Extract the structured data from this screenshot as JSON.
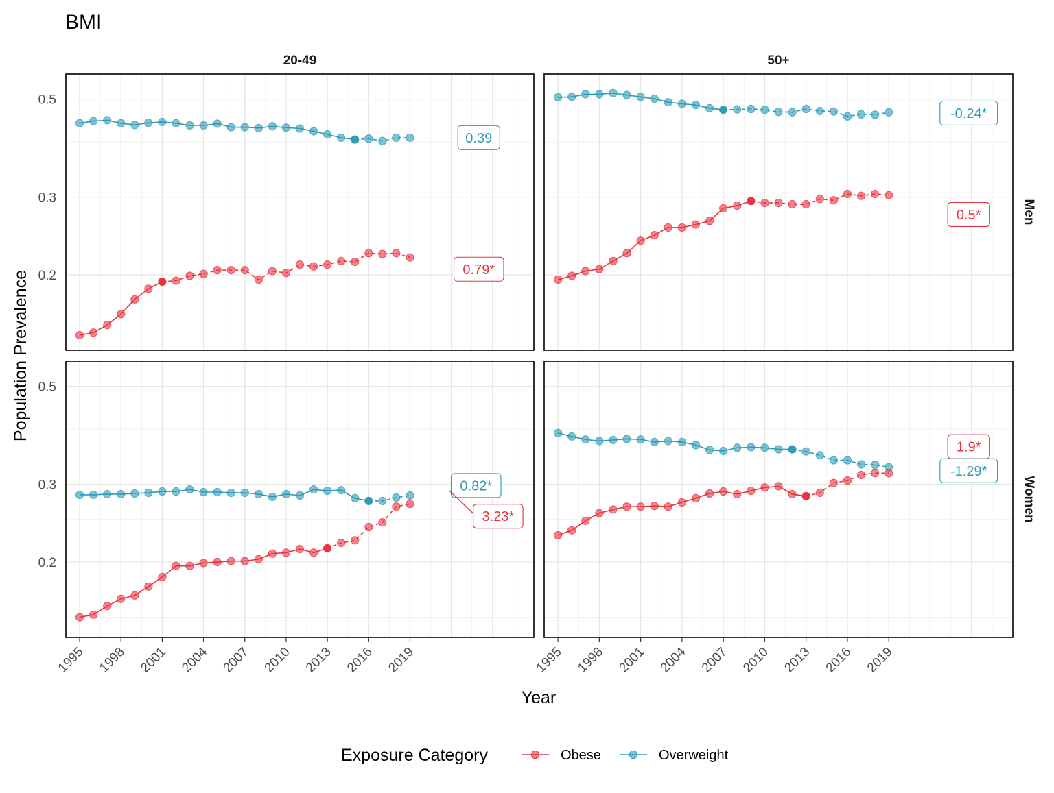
{
  "colors": {
    "Obese": "#e8323f",
    "Overweight": "#2d9bb5"
  },
  "chart_data": {
    "type": "line",
    "title": "BMI",
    "xlabel": "Year",
    "ylabel": "Population Prevalence",
    "y_scale": "log",
    "ylim": [
      0.135,
      0.57
    ],
    "xlim": [
      1994,
      2028
    ],
    "x_ticks": [
      "1995",
      "1998",
      "2001",
      "2004",
      "2007",
      "2010",
      "2013",
      "2016",
      "2019"
    ],
    "y_ticks": [
      "0.2",
      "0.3",
      "0.5"
    ],
    "col_labels": [
      "20-49",
      "50+"
    ],
    "row_labels": [
      "Men",
      "Women"
    ],
    "legend": {
      "title": "Exposure Category",
      "position": "bottom",
      "entries": [
        "Obese",
        "Overweight"
      ]
    },
    "grid": true,
    "panels": [
      {
        "col": "20-49",
        "row": "Men",
        "series": [
          {
            "name": "Overweight",
            "x": [
              1995,
              1996,
              1997,
              1998,
              1999,
              2000,
              2001,
              2002,
              2003,
              2004,
              2005,
              2006,
              2007,
              2008,
              2009,
              2010,
              2011,
              2012,
              2013,
              2014,
              2015,
              2016,
              2017,
              2018,
              2019
            ],
            "y": [
              0.441,
              0.446,
              0.448,
              0.441,
              0.437,
              0.442,
              0.444,
              0.441,
              0.436,
              0.436,
              0.44,
              0.432,
              0.432,
              0.43,
              0.434,
              0.431,
              0.429,
              0.423,
              0.416,
              0.409,
              0.405,
              0.407,
              0.402,
              0.409,
              0.409
            ],
            "dashed_from": 2015
          },
          {
            "name": "Obese",
            "x": [
              1995,
              1996,
              1997,
              1998,
              1999,
              2000,
              2001,
              2002,
              2003,
              2004,
              2005,
              2006,
              2007,
              2008,
              2009,
              2010,
              2011,
              2012,
              2013,
              2014,
              2015,
              2016,
              2017,
              2018,
              2019
            ],
            "y": [
              0.146,
              0.148,
              0.154,
              0.163,
              0.176,
              0.186,
              0.193,
              0.194,
              0.199,
              0.201,
              0.205,
              0.205,
              0.205,
              0.195,
              0.204,
              0.202,
              0.211,
              0.209,
              0.211,
              0.215,
              0.214,
              0.224,
              0.223,
              0.224,
              0.219
            ],
            "dashed_from": 2001
          }
        ],
        "annotations": [
          {
            "series": "Overweight",
            "text": "0.39",
            "x": 2024,
            "y": 0.409
          },
          {
            "series": "Obese",
            "text": "0.79*",
            "x": 2024,
            "y": 0.206
          }
        ]
      },
      {
        "col": "50+",
        "row": "Men",
        "series": [
          {
            "name": "Overweight",
            "x": [
              1995,
              1996,
              1997,
              1998,
              1999,
              2000,
              2001,
              2002,
              2003,
              2004,
              2005,
              2006,
              2007,
              2008,
              2009,
              2010,
              2011,
              2012,
              2013,
              2014,
              2015,
              2016,
              2017,
              2018,
              2019
            ],
            "y": [
              0.505,
              0.506,
              0.513,
              0.513,
              0.516,
              0.511,
              0.506,
              0.501,
              0.492,
              0.488,
              0.485,
              0.477,
              0.473,
              0.474,
              0.475,
              0.473,
              0.468,
              0.467,
              0.475,
              0.47,
              0.469,
              0.457,
              0.462,
              0.461,
              0.467
            ],
            "dashed_from": 2007
          },
          {
            "name": "Obese",
            "x": [
              1995,
              1996,
              1997,
              1998,
              1999,
              2000,
              2001,
              2002,
              2003,
              2004,
              2005,
              2006,
              2007,
              2008,
              2009,
              2010,
              2011,
              2012,
              2013,
              2014,
              2015,
              2016,
              2017,
              2018,
              2019
            ],
            "y": [
              0.195,
              0.199,
              0.204,
              0.206,
              0.215,
              0.224,
              0.239,
              0.246,
              0.256,
              0.256,
              0.26,
              0.265,
              0.283,
              0.287,
              0.294,
              0.291,
              0.291,
              0.289,
              0.289,
              0.297,
              0.295,
              0.305,
              0.302,
              0.305,
              0.303
            ],
            "dashed_from": 2009
          }
        ],
        "annotations": [
          {
            "series": "Overweight",
            "text": "-0.24*",
            "x": 2024.8,
            "y": 0.465
          },
          {
            "series": "Obese",
            "text": "0.5*",
            "x": 2024.8,
            "y": 0.274
          }
        ]
      },
      {
        "col": "20-49",
        "row": "Women",
        "series": [
          {
            "name": "Overweight",
            "x": [
              1995,
              1996,
              1997,
              1998,
              1999,
              2000,
              2001,
              2002,
              2003,
              2004,
              2005,
              2006,
              2007,
              2008,
              2009,
              2010,
              2011,
              2012,
              2013,
              2014,
              2015,
              2016,
              2017,
              2018,
              2019
            ],
            "y": [
              0.284,
              0.284,
              0.285,
              0.285,
              0.286,
              0.287,
              0.289,
              0.289,
              0.292,
              0.288,
              0.288,
              0.287,
              0.287,
              0.285,
              0.281,
              0.285,
              0.283,
              0.292,
              0.29,
              0.291,
              0.279,
              0.275,
              0.275,
              0.28,
              0.283
            ],
            "dashed_from": 2016
          },
          {
            "name": "Obese",
            "x": [
              1995,
              1996,
              1997,
              1998,
              1999,
              2000,
              2001,
              2002,
              2003,
              2004,
              2005,
              2006,
              2007,
              2008,
              2009,
              2010,
              2011,
              2012,
              2013,
              2014,
              2015,
              2016,
              2017,
              2018,
              2019
            ],
            "y": [
              0.15,
              0.152,
              0.159,
              0.165,
              0.168,
              0.176,
              0.185,
              0.196,
              0.196,
              0.199,
              0.2,
              0.201,
              0.201,
              0.203,
              0.209,
              0.21,
              0.214,
              0.21,
              0.215,
              0.221,
              0.224,
              0.24,
              0.246,
              0.267,
              0.271
            ],
            "dashed_from": 2013
          }
        ],
        "annotations": [
          {
            "series": "Overweight",
            "text": "0.82*",
            "x": 2023.8,
            "y": 0.298
          },
          {
            "series": "Obese",
            "text": "3.23*",
            "x": 2025.4,
            "y": 0.254
          }
        ]
      },
      {
        "col": "50+",
        "row": "Women",
        "series": [
          {
            "name": "Overweight",
            "x": [
              1995,
              1996,
              1997,
              1998,
              1999,
              2000,
              2001,
              2002,
              2003,
              2004,
              2005,
              2006,
              2007,
              2008,
              2009,
              2010,
              2011,
              2012,
              2013,
              2014,
              2015,
              2016,
              2017,
              2018,
              2019
            ],
            "y": [
              0.392,
              0.385,
              0.379,
              0.376,
              0.378,
              0.38,
              0.379,
              0.374,
              0.376,
              0.374,
              0.368,
              0.359,
              0.357,
              0.363,
              0.364,
              0.363,
              0.36,
              0.36,
              0.356,
              0.349,
              0.34,
              0.34,
              0.333,
              0.332,
              0.328
            ],
            "dashed_from": 2012
          },
          {
            "name": "Obese",
            "x": [
              1995,
              1996,
              1997,
              1998,
              1999,
              2000,
              2001,
              2002,
              2003,
              2004,
              2005,
              2006,
              2007,
              2008,
              2009,
              2010,
              2011,
              2012,
              2013,
              2014,
              2015,
              2016,
              2017,
              2018,
              2019
            ],
            "y": [
              0.23,
              0.236,
              0.248,
              0.258,
              0.263,
              0.267,
              0.267,
              0.268,
              0.267,
              0.273,
              0.279,
              0.286,
              0.289,
              0.285,
              0.29,
              0.295,
              0.297,
              0.285,
              0.282,
              0.287,
              0.302,
              0.306,
              0.315,
              0.318,
              0.318
            ],
            "dashed_from": 2013
          }
        ],
        "annotations": [
          {
            "series": "Obese",
            "text": "1.9*",
            "x": 2024.8,
            "y": 0.365
          },
          {
            "series": "Overweight",
            "text": "-1.29*",
            "x": 2024.8,
            "y": 0.322
          }
        ]
      }
    ]
  }
}
